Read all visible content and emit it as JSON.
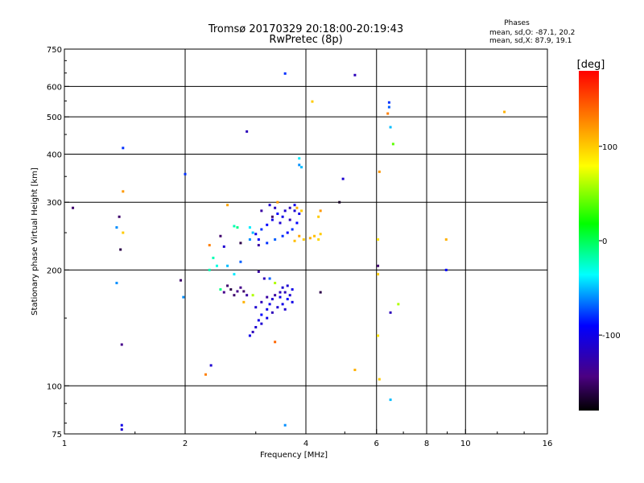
{
  "chart_data": {
    "type": "scatter",
    "title": "Tromsø 20170329 20:18:00-20:19:43",
    "subtitle": "RwPretec (8p)",
    "xlabel": "Frequency [MHz]",
    "ylabel": "Stationary phase Virtual Height [km]",
    "x_scale": "log",
    "y_scale": "log",
    "xlim": [
      1,
      16
    ],
    "ylim": [
      75,
      750
    ],
    "x_ticks": [
      1,
      2,
      4,
      6,
      8,
      10,
      16
    ],
    "x_tick_labels": [
      "1",
      "2",
      "4",
      "6",
      "8",
      "10",
      "16"
    ],
    "x_grid": [
      2,
      4,
      6,
      8,
      10
    ],
    "y_ticks": [
      75,
      100,
      200,
      300,
      400,
      500,
      600,
      750
    ],
    "y_tick_labels": [
      "75",
      "100",
      "200",
      "300",
      "400",
      "500",
      "600",
      "750"
    ],
    "y_grid": [
      100,
      200,
      300,
      400,
      500,
      600
    ],
    "grid": true,
    "stats": {
      "title": "Phases",
      "line_o": "mean, sd,O: -87.1, 20.2",
      "line_x": "mean, sd,X:  87.9, 19.1"
    },
    "colorbar": {
      "label": "[deg]",
      "min": -180,
      "max": 180,
      "ticks": [
        100,
        0,
        -100
      ],
      "tick_labels": [
        "100",
        "0",
        "-100"
      ]
    },
    "points": [
      [
        1.05,
        290,
        -150
      ],
      [
        1.35,
        258,
        -60
      ],
      [
        1.37,
        275,
        -150
      ],
      [
        1.38,
        226,
        -160
      ],
      [
        1.35,
        185,
        -60
      ],
      [
        1.39,
        128,
        -140
      ],
      [
        1.4,
        415,
        -80
      ],
      [
        1.39,
        79,
        -100
      ],
      [
        1.39,
        77,
        -110
      ],
      [
        1.4,
        320,
        120
      ],
      [
        1.4,
        250,
        100
      ],
      [
        1.95,
        188,
        -150
      ],
      [
        1.98,
        170,
        -60
      ],
      [
        2.0,
        355,
        -80
      ],
      [
        2.25,
        107,
        130
      ],
      [
        2.32,
        113,
        -110
      ],
      [
        2.3,
        232,
        130
      ],
      [
        2.55,
        295,
        115
      ],
      [
        2.85,
        458,
        -120
      ],
      [
        3.55,
        648,
        -80
      ],
      [
        5.3,
        642,
        -120
      ],
      [
        4.15,
        548,
        100
      ],
      [
        6.45,
        545,
        -80
      ],
      [
        6.45,
        530,
        -70
      ],
      [
        6.4,
        510,
        130
      ],
      [
        6.5,
        470,
        -50
      ],
      [
        6.6,
        425,
        40
      ],
      [
        6.1,
        360,
        120
      ],
      [
        6.05,
        240,
        90
      ],
      [
        6.05,
        205,
        -150
      ],
      [
        6.05,
        195,
        100
      ],
      [
        6.5,
        155,
        -120
      ],
      [
        6.8,
        163,
        60
      ],
      [
        6.05,
        135,
        90
      ],
      [
        5.3,
        110,
        110
      ],
      [
        6.1,
        104,
        100
      ],
      [
        6.5,
        92,
        -50
      ],
      [
        3.55,
        79,
        -60
      ],
      [
        4.35,
        175,
        -160
      ],
      [
        4.95,
        345,
        -110
      ],
      [
        4.85,
        300,
        -170
      ],
      [
        4.35,
        285,
        120
      ],
      [
        4.3,
        275,
        100
      ],
      [
        3.85,
        375,
        -60
      ],
      [
        3.9,
        370,
        -50
      ],
      [
        3.85,
        390,
        -40
      ],
      [
        3.4,
        300,
        120
      ],
      [
        3.3,
        275,
        -150
      ],
      [
        3.1,
        285,
        -130
      ],
      [
        2.65,
        260,
        -20
      ],
      [
        2.7,
        258,
        -10
      ],
      [
        2.9,
        258,
        -40
      ],
      [
        2.95,
        250,
        -50
      ],
      [
        2.9,
        240,
        -60
      ],
      [
        3.05,
        240,
        -90
      ],
      [
        3.2,
        235,
        -80
      ],
      [
        3.35,
        240,
        -70
      ],
      [
        3.5,
        245,
        -80
      ],
      [
        3.6,
        250,
        -90
      ],
      [
        3.7,
        255,
        -80
      ],
      [
        3.8,
        265,
        -90
      ],
      [
        3.85,
        280,
        -100
      ],
      [
        3.75,
        285,
        -110
      ],
      [
        3.65,
        270,
        -120
      ],
      [
        3.45,
        265,
        -110
      ],
      [
        3.3,
        270,
        -100
      ],
      [
        3.2,
        262,
        -90
      ],
      [
        3.1,
        255,
        -80
      ],
      [
        3.0,
        248,
        -100
      ],
      [
        3.25,
        295,
        -110
      ],
      [
        3.35,
        290,
        -120
      ],
      [
        3.4,
        280,
        -90
      ],
      [
        3.5,
        275,
        -100
      ],
      [
        3.55,
        285,
        -110
      ],
      [
        3.65,
        290,
        -120
      ],
      [
        3.75,
        295,
        -100
      ],
      [
        3.8,
        290,
        110
      ],
      [
        3.9,
        285,
        100
      ],
      [
        3.95,
        240,
        100
      ],
      [
        4.1,
        242,
        110
      ],
      [
        4.2,
        245,
        105
      ],
      [
        4.3,
        240,
        95
      ],
      [
        4.35,
        248,
        100
      ],
      [
        3.85,
        245,
        115
      ],
      [
        3.75,
        238,
        105
      ],
      [
        3.05,
        232,
        -130
      ],
      [
        2.75,
        235,
        -160
      ],
      [
        2.45,
        245,
        -150
      ],
      [
        2.5,
        230,
        -110
      ],
      [
        2.35,
        215,
        -20
      ],
      [
        2.4,
        205,
        -30
      ],
      [
        2.55,
        205,
        -50
      ],
      [
        2.75,
        210,
        -70
      ],
      [
        2.3,
        200,
        -20
      ],
      [
        2.65,
        195,
        -40
      ],
      [
        3.05,
        198,
        -130
      ],
      [
        3.15,
        190,
        -120
      ],
      [
        3.25,
        190,
        -70
      ],
      [
        3.35,
        185,
        60
      ],
      [
        3.5,
        180,
        -110
      ],
      [
        3.55,
        175,
        -120
      ],
      [
        3.45,
        170,
        -100
      ],
      [
        3.3,
        168,
        -110
      ],
      [
        3.25,
        163,
        -100
      ],
      [
        3.2,
        158,
        -100
      ],
      [
        3.1,
        153,
        -90
      ],
      [
        3.05,
        148,
        -100
      ],
      [
        3.0,
        142,
        -110
      ],
      [
        2.95,
        138,
        -120
      ],
      [
        2.9,
        135,
        -100
      ],
      [
        3.1,
        145,
        -110
      ],
      [
        3.2,
        150,
        -100
      ],
      [
        3.3,
        155,
        -120
      ],
      [
        3.4,
        160,
        -110
      ],
      [
        3.5,
        163,
        -100
      ],
      [
        3.6,
        168,
        -90
      ],
      [
        3.65,
        172,
        -110
      ],
      [
        3.7,
        178,
        -100
      ],
      [
        3.6,
        182,
        -110
      ],
      [
        3.45,
        175,
        -120
      ],
      [
        3.35,
        172,
        -130
      ],
      [
        3.2,
        170,
        -130
      ],
      [
        3.1,
        165,
        -120
      ],
      [
        3.0,
        160,
        -110
      ],
      [
        3.55,
        158,
        -110
      ],
      [
        3.7,
        165,
        -100
      ],
      [
        3.35,
        130,
        140
      ],
      [
        2.55,
        182,
        -150
      ],
      [
        2.6,
        178,
        -160
      ],
      [
        2.7,
        176,
        -140
      ],
      [
        2.8,
        176,
        -150
      ],
      [
        2.95,
        172,
        60
      ],
      [
        2.8,
        165,
        110
      ],
      [
        2.45,
        178,
        -10
      ],
      [
        2.5,
        175,
        -140
      ],
      [
        2.65,
        172,
        -150
      ],
      [
        2.75,
        180,
        -140
      ],
      [
        2.85,
        172,
        -130
      ],
      [
        8.95,
        240,
        110
      ],
      [
        8.95,
        200,
        -90
      ],
      [
        12.5,
        515,
        110
      ]
    ]
  }
}
